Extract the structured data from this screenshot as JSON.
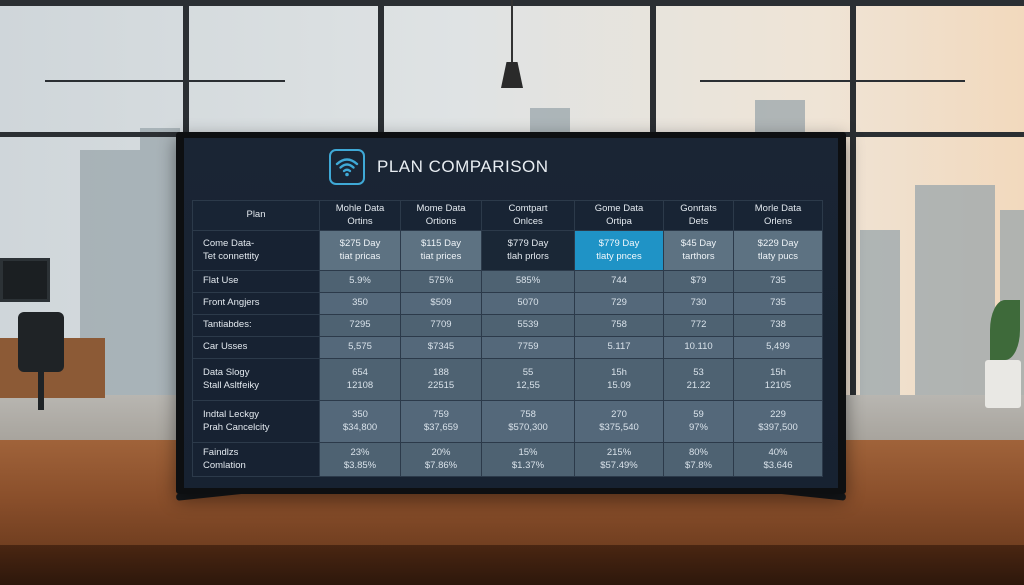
{
  "title": "PLAN COMPARISON",
  "colors": {
    "screen_bg": "#172231",
    "cell": "#4e6272",
    "highlight": "#1f93c6",
    "icon": "#3fa9d6"
  },
  "icon": "wifi-icon",
  "table": {
    "corner_label": "Plan",
    "columns": [
      "Mohle Data\nOrtins",
      "Mome Data\nOrtions",
      "Comtpart\nOnlces",
      "Gome Data\nOrtipa",
      "Gonrtats\nDets",
      "Morle Data\nOrlens"
    ],
    "rows": [
      {
        "label": "Come Data-\nTet connettity",
        "values": [
          "$275 Day\ntiat pricas",
          "$115 Day\ntiat prices",
          "$779 Day\ntlah prlors",
          "$779 Day\ntlaty pnces",
          "$45 Day\ntarthors",
          "$229 Day\ntlaty pucs"
        ]
      },
      {
        "label": "Flat Use",
        "values": [
          "5.9%",
          "575%",
          "585%",
          "744",
          "$79",
          "735"
        ]
      },
      {
        "label": "Front Angjers",
        "values": [
          "350",
          "$509",
          "5070",
          "729",
          "730",
          "735"
        ]
      },
      {
        "label": "Tantiabdes:",
        "values": [
          "7295",
          "7709",
          "5539",
          "758",
          "772",
          "738"
        ]
      },
      {
        "label": "Car Usses",
        "values": [
          "5,575",
          "$7345",
          "7759",
          "5.117",
          "10.110",
          "5,499"
        ]
      },
      {
        "label": "Data Slogy\nStall Asltfeiky",
        "values": [
          "654\n12108",
          "188\n22515",
          "55\n12,55",
          "15h\n15.09",
          "53\n21.22",
          "15h\n12105"
        ]
      },
      {
        "label": "Indtal Leckgy\nPrah Cancelcity",
        "values": [
          "350\n$34,800",
          "759\n$37,659",
          "758\n$570,300",
          "270\n$375,540",
          "59\n97%",
          "229\n$397,500"
        ]
      },
      {
        "label": "Faindlzs\nComlation",
        "values": [
          "23%\n$3.85%",
          "20%\n$7.86%",
          "15%\n$1.37%",
          "215%\n$57.49%",
          "80%\n$7.8%",
          "40%\n$3.646"
        ]
      }
    ]
  }
}
